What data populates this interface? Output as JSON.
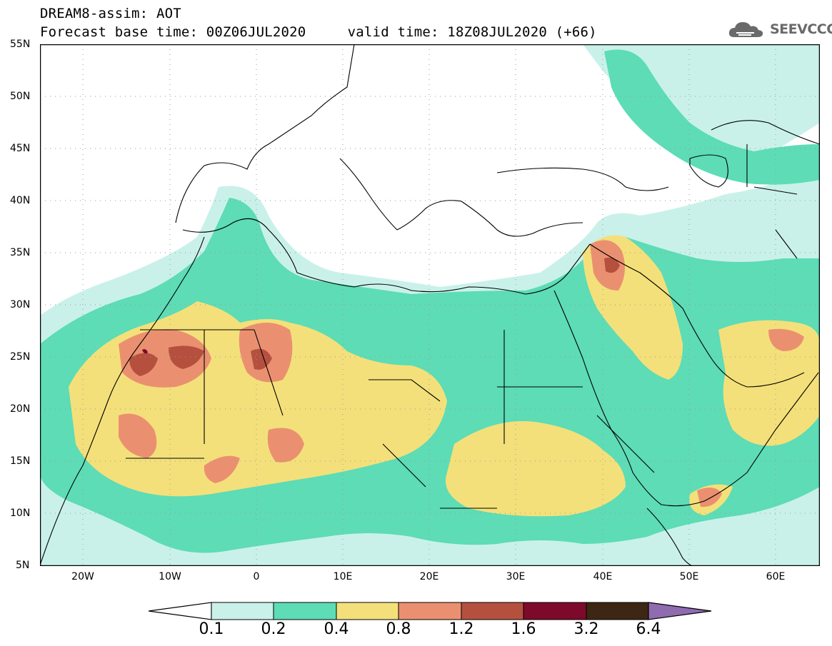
{
  "header": {
    "line1": "DREAM8-assim: AOT",
    "line2": "Forecast base time: 00Z06JUL2020     valid time: 18Z08JUL2020 (+66)"
  },
  "brand": {
    "name": "SEEVCCC",
    "icon": "cloud-logo-icon"
  },
  "map": {
    "lat_labels": [
      "55N",
      "50N",
      "45N",
      "40N",
      "35N",
      "30N",
      "25N",
      "20N",
      "15N",
      "10N",
      "5N"
    ],
    "lon_labels": [
      "20W",
      "10W",
      "0",
      "10E",
      "20E",
      "30E",
      "40E",
      "50E",
      "60E"
    ]
  },
  "legend": {
    "labels": [
      "0.1",
      "0.2",
      "0.4",
      "0.8",
      "1.2",
      "1.6",
      "3.2",
      "6.4"
    ],
    "colors": [
      "#c9f1ea",
      "#5ddcb6",
      "#f4e07a",
      "#ea9070",
      "#b5503f",
      "#7d0a2b",
      "#3d2614",
      "#8f6bb0"
    ]
  }
}
